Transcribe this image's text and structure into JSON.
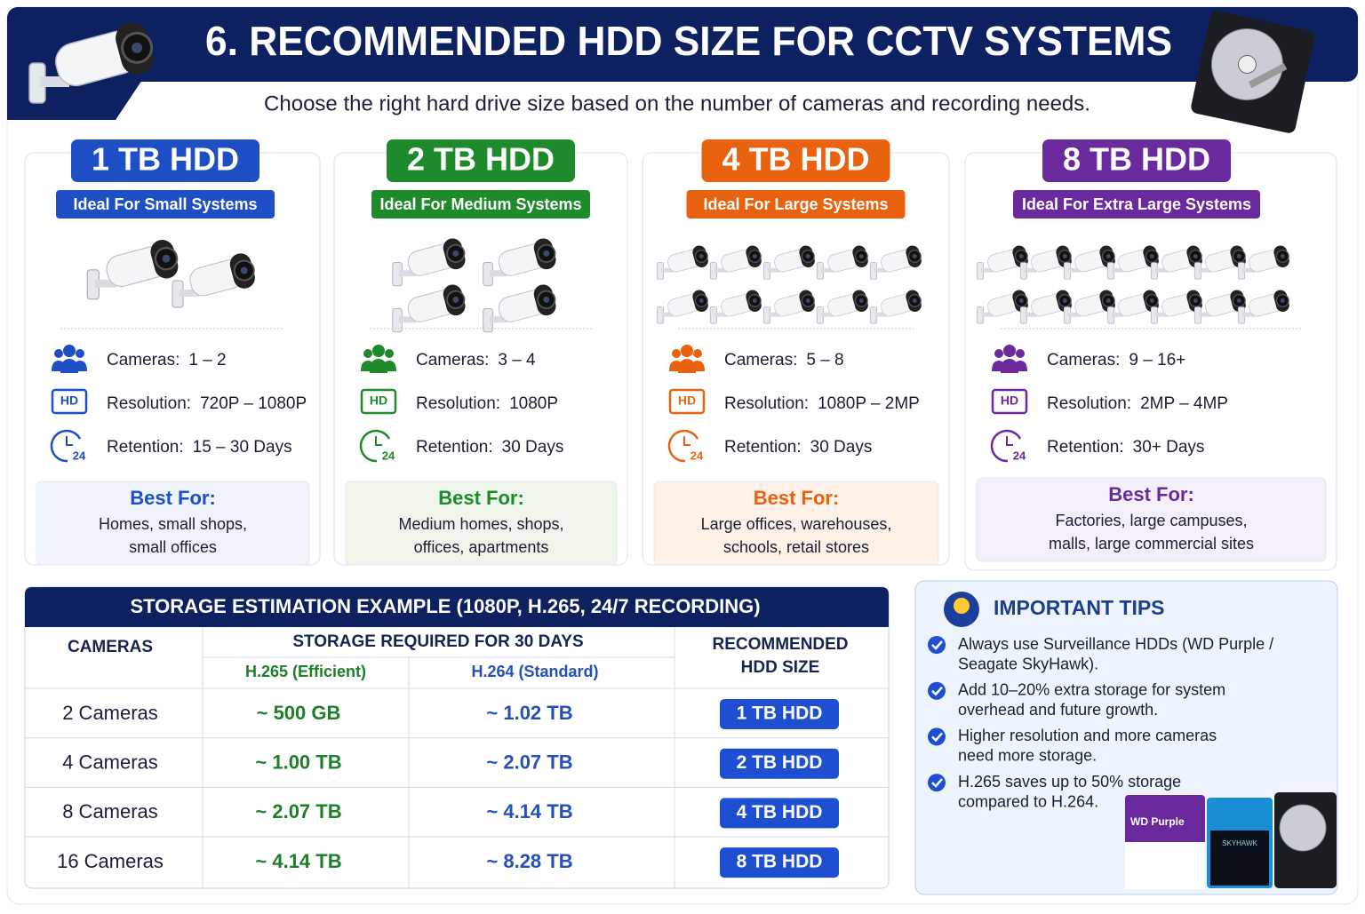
{
  "header": {
    "title": "6. RECOMMENDED HDD SIZE FOR CCTV SYSTEMS",
    "subtitle": "Choose the right hard drive size based on the number of cameras and recording needs."
  },
  "icon_texts": {
    "hd": "HD",
    "clock": "24"
  },
  "cards": [
    {
      "title": "1 TB HDD",
      "subtitle": "Ideal For Small Systems",
      "color": "#1f4fc4",
      "tint": "#eef3fc",
      "cameras_label": "Cameras:",
      "cameras": "1 – 2",
      "resolution_label": "Resolution:",
      "resolution": "720P – 1080P",
      "retention_label": "Retention:",
      "retention": "15 – 30 Days",
      "best_for_title": "Best For:",
      "best_for": [
        "Homes, small shops,",
        "small offices"
      ]
    },
    {
      "title": "2 TB HDD",
      "subtitle": "Ideal For Medium Systems",
      "color": "#1e8a2c",
      "tint": "#eef6ec",
      "cameras_label": "Cameras:",
      "cameras": "3 – 4",
      "resolution_label": "Resolution:",
      "resolution": "1080P",
      "retention_label": "Retention:",
      "retention": "30 Days",
      "best_for_title": "Best For:",
      "best_for": [
        "Medium homes, shops,",
        "offices, apartments"
      ]
    },
    {
      "title": "4 TB HDD",
      "subtitle": "Ideal For Large Systems",
      "color": "#e8620f",
      "tint": "#fdf1e8",
      "cameras_label": "Cameras:",
      "cameras": "5 – 8",
      "resolution_label": "Resolution:",
      "resolution": "1080P – 2MP",
      "retention_label": "Retention:",
      "retention": "30 Days",
      "best_for_title": "Best For:",
      "best_for": [
        "Large offices, warehouses,",
        "schools, retail stores"
      ]
    },
    {
      "title": "8 TB HDD",
      "subtitle": "Ideal For Extra Large Systems",
      "color": "#6a2a9e",
      "tint": "#f4eff9",
      "cameras_label": "Cameras:",
      "cameras": "9 – 16+",
      "resolution_label": "Resolution:",
      "resolution": "2MP – 4MP",
      "retention_label": "Retention:",
      "retention": "30+ Days",
      "best_for_title": "Best For:",
      "best_for": [
        "Factories, large campuses,",
        "malls, large commercial sites"
      ]
    }
  ],
  "table": {
    "title": "STORAGE ESTIMATION EXAMPLE (1080P, H.265, 24/7 RECORDING)",
    "headers": {
      "cameras": "CAMERAS",
      "storage": "STORAGE REQUIRED FOR 30 DAYS",
      "h265": "H.265 (Efficient)",
      "h264": "H.264 (Standard)",
      "recommended": [
        "RECOMMENDED",
        "HDD SIZE"
      ]
    },
    "rows": [
      [
        "2 Cameras",
        "~ 500 GB",
        "~ 1.02 TB",
        "1 TB HDD"
      ],
      [
        "4 Cameras",
        "~ 1.00 TB",
        "~ 2.07 TB",
        "2 TB HDD"
      ],
      [
        "8 Cameras",
        "~ 2.07 TB",
        "~ 4.14 TB",
        "4 TB HDD"
      ],
      [
        "16 Cameras",
        "~ 4.14 TB",
        "~ 8.28 TB",
        "8 TB HDD"
      ]
    ]
  },
  "tips": {
    "title": "IMPORTANT TIPS",
    "items": [
      [
        "Always use Surveillance HDDs (WD Purple /",
        "Seagate SkyHawk)."
      ],
      [
        "Add 10–20% extra storage for system",
        "overhead and future growth."
      ],
      [
        "Higher resolution and more cameras",
        "need more storage."
      ],
      [
        "H.265 saves up to 50% storage",
        "compared to H.264."
      ]
    ],
    "products": [
      "WD Purple",
      "SKYHAWK"
    ]
  }
}
